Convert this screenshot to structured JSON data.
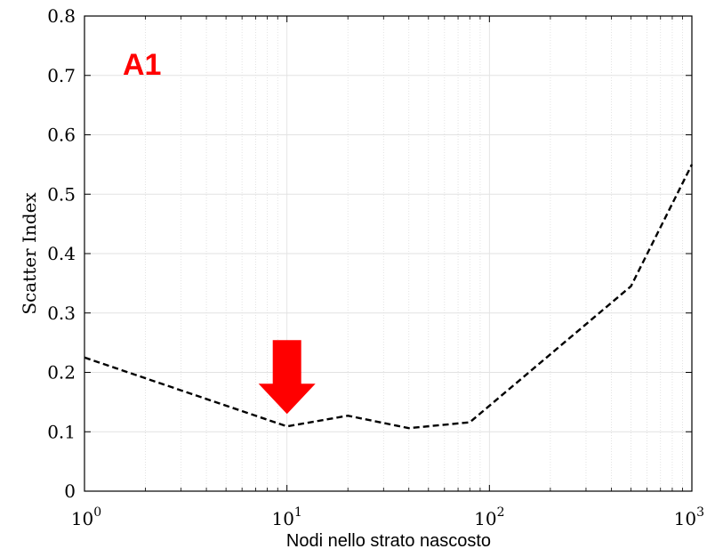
{
  "chart_data": {
    "type": "line",
    "xlabel": "Nodi nello strato nascosto",
    "ylabel": "Scatter Index",
    "xscale": "log",
    "xlim": [
      1,
      1000
    ],
    "ylim": [
      0,
      0.8
    ],
    "grid": true,
    "xticks": [
      {
        "base": "10",
        "exp": "0",
        "value": 1
      },
      {
        "base": "10",
        "exp": "1",
        "value": 10
      },
      {
        "base": "10",
        "exp": "2",
        "value": 100
      },
      {
        "base": "10",
        "exp": "3",
        "value": 1000
      }
    ],
    "yticks": [
      "0",
      "0.1",
      "0.2",
      "0.3",
      "0.4",
      "0.5",
      "0.6",
      "0.7",
      "0.8"
    ],
    "series": [
      {
        "style": "dashed",
        "color": "#000000",
        "x": [
          1,
          10,
          20,
          40,
          80,
          500,
          1000
        ],
        "y": [
          0.225,
          0.109,
          0.127,
          0.106,
          0.116,
          0.345,
          0.55
        ]
      }
    ],
    "annotations": [
      {
        "type": "text",
        "text": "A1",
        "color": "#ff0000"
      },
      {
        "type": "arrow",
        "direction": "down",
        "color": "#ff0000",
        "points_to": {
          "x": 10,
          "y": 0.13
        }
      }
    ]
  }
}
